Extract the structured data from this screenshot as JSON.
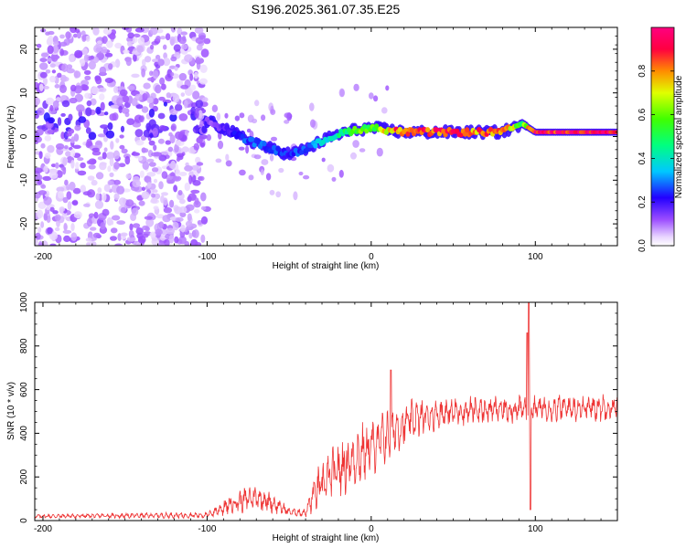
{
  "title": "S196.2025.361.07.35.E25",
  "chart_data": [
    {
      "type": "heatmap",
      "name": "spectrogram",
      "xlabel": "Height of straight line (km)",
      "ylabel": "Frequency (Hz)",
      "xlim": [
        -205,
        150
      ],
      "ylim": [
        -25,
        25
      ],
      "xticks": [
        -200,
        -100,
        0,
        100
      ],
      "yticks": [
        20,
        10,
        0,
        -10,
        -20
      ],
      "colorbar": {
        "label": "Normalized spectral amplitude",
        "range": [
          0,
          1
        ],
        "ticks": [
          "0.0",
          "0.2",
          "0.4",
          "0.6",
          "0.8"
        ],
        "tick_values": [
          0.0,
          0.2,
          0.4,
          0.6,
          0.8
        ]
      },
      "ridge": [
        {
          "x": -100,
          "f": 3.5,
          "amp": 0.12
        },
        {
          "x": -90,
          "f": 2.0,
          "amp": 0.18
        },
        {
          "x": -80,
          "f": 0.0,
          "amp": 0.25
        },
        {
          "x": -70,
          "f": -1.5,
          "amp": 0.3
        },
        {
          "x": -60,
          "f": -3.0,
          "amp": 0.28
        },
        {
          "x": -50,
          "f": -4.0,
          "amp": 0.25
        },
        {
          "x": -40,
          "f": -3.0,
          "amp": 0.3
        },
        {
          "x": -30,
          "f": -1.0,
          "amp": 0.35
        },
        {
          "x": -20,
          "f": 0.5,
          "amp": 0.45
        },
        {
          "x": -10,
          "f": 1.5,
          "amp": 0.6
        },
        {
          "x": 0,
          "f": 2.0,
          "amp": 0.6
        },
        {
          "x": 10,
          "f": 1.5,
          "amp": 0.75
        },
        {
          "x": 20,
          "f": 1.0,
          "amp": 0.95
        },
        {
          "x": 40,
          "f": 1.0,
          "amp": 0.9
        },
        {
          "x": 60,
          "f": 1.0,
          "amp": 0.85
        },
        {
          "x": 80,
          "f": 1.0,
          "amp": 0.9
        },
        {
          "x": 92,
          "f": 3.0,
          "amp": 0.55
        },
        {
          "x": 100,
          "f": 1.0,
          "amp": 1.0
        },
        {
          "x": 150,
          "f": 1.0,
          "amp": 1.0
        }
      ]
    },
    {
      "type": "line",
      "name": "snr",
      "xlabel": "Height of straight line (km)",
      "ylabel": "SNR (10 * v/v)",
      "xlim": [
        -205,
        150
      ],
      "ylim": [
        0,
        1000
      ],
      "xticks": [
        -200,
        -100,
        0,
        100
      ],
      "yticks": [
        0,
        200,
        400,
        600,
        800,
        1000
      ],
      "color": "#ee3333",
      "envelope": [
        {
          "x": -205,
          "base": 20,
          "amp": 10
        },
        {
          "x": -100,
          "base": 25,
          "amp": 15
        },
        {
          "x": -90,
          "base": 60,
          "amp": 40
        },
        {
          "x": -80,
          "base": 90,
          "amp": 60
        },
        {
          "x": -70,
          "base": 110,
          "amp": 70
        },
        {
          "x": -60,
          "base": 80,
          "amp": 50
        },
        {
          "x": -50,
          "base": 40,
          "amp": 20
        },
        {
          "x": -40,
          "base": 35,
          "amp": 20
        },
        {
          "x": -35,
          "base": 120,
          "amp": 100
        },
        {
          "x": -25,
          "base": 200,
          "amp": 140
        },
        {
          "x": -15,
          "base": 260,
          "amp": 150
        },
        {
          "x": -5,
          "base": 310,
          "amp": 150
        },
        {
          "x": 5,
          "base": 360,
          "amp": 140
        },
        {
          "x": 15,
          "base": 420,
          "amp": 120
        },
        {
          "x": 25,
          "base": 460,
          "amp": 100
        },
        {
          "x": 40,
          "base": 490,
          "amp": 80
        },
        {
          "x": 60,
          "base": 505,
          "amp": 70
        },
        {
          "x": 85,
          "base": 510,
          "amp": 70
        },
        {
          "x": 100,
          "base": 515,
          "amp": 70
        },
        {
          "x": 150,
          "base": 520,
          "amp": 70
        }
      ],
      "peaks": [
        {
          "x": 12,
          "y": 690
        },
        {
          "x": 96,
          "y": 1000
        },
        {
          "x": 95,
          "y": 860
        },
        {
          "x": 97,
          "y": 50
        }
      ]
    }
  ]
}
